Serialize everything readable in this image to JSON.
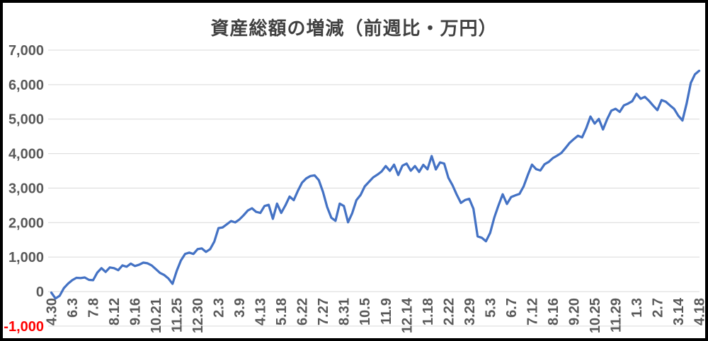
{
  "chart_data": {
    "type": "line",
    "title": "資産総額の増減（前週比・万円）",
    "legend": "none",
    "grid": "horizontal",
    "background": "#FFFFFF",
    "frame_color": "#000000",
    "line_color": "#4472C4",
    "gridline_color": "#D9D9D9",
    "axis_label_color": "#595959",
    "negative_tick_color": "#FF0000",
    "ylim": [
      -1000,
      7000
    ],
    "y_ticks": [
      7000,
      6000,
      5000,
      4000,
      3000,
      2000,
      1000,
      0,
      -1000
    ],
    "y_tick_labels": [
      "7,000",
      "6,000",
      "5,000",
      "4,000",
      "3,000",
      "2,000",
      "1,000",
      "0",
      "-1,000"
    ],
    "x_tick_interval_weeks": 5,
    "x_tick_labels": [
      "4.30",
      "6.3",
      "7.8",
      "8.12",
      "9.16",
      "10.21",
      "11.25",
      "12.30",
      "2.3",
      "3.9",
      "4.13",
      "5.18",
      "6.22",
      "7.27",
      "8.31",
      "10.5",
      "11.9",
      "12.14",
      "1.18",
      "2.22",
      "3.29",
      "5.3",
      "6.7",
      "7.12",
      "8.16",
      "9.20",
      "10.25",
      "11.29",
      "1.3",
      "2.7",
      "3.14",
      "4.18"
    ],
    "values": [
      -30,
      -200,
      -120,
      100,
      230,
      330,
      400,
      390,
      410,
      340,
      330,
      550,
      680,
      570,
      700,
      680,
      620,
      760,
      720,
      810,
      740,
      780,
      840,
      820,
      760,
      650,
      540,
      480,
      380,
      225,
      600,
      900,
      1090,
      1130,
      1090,
      1230,
      1250,
      1150,
      1230,
      1450,
      1840,
      1860,
      1950,
      2045,
      2005,
      2090,
      2210,
      2350,
      2415,
      2310,
      2280,
      2480,
      2515,
      2110,
      2550,
      2280,
      2500,
      2755,
      2650,
      2925,
      3160,
      3280,
      3350,
      3370,
      3230,
      2890,
      2450,
      2140,
      2050,
      2550,
      2480,
      2010,
      2275,
      2650,
      2800,
      3050,
      3180,
      3310,
      3390,
      3480,
      3640,
      3500,
      3680,
      3380,
      3650,
      3710,
      3505,
      3640,
      3470,
      3675,
      3545,
      3930,
      3540,
      3745,
      3710,
      3300,
      3080,
      2810,
      2570,
      2655,
      2690,
      2400,
      1600,
      1560,
      1460,
      1700,
      2150,
      2500,
      2820,
      2540,
      2740,
      2790,
      2830,
      3050,
      3380,
      3680,
      3550,
      3510,
      3690,
      3760,
      3870,
      3940,
      4015,
      4160,
      4310,
      4420,
      4520,
      4470,
      4740,
      5075,
      4870,
      5005,
      4700,
      5000,
      5245,
      5300,
      5210,
      5400,
      5450,
      5520,
      5735,
      5590,
      5645,
      5530,
      5390,
      5260,
      5550,
      5505,
      5400,
      5300,
      5100,
      4960,
      5450,
      6050,
      6300,
      6400
    ]
  }
}
